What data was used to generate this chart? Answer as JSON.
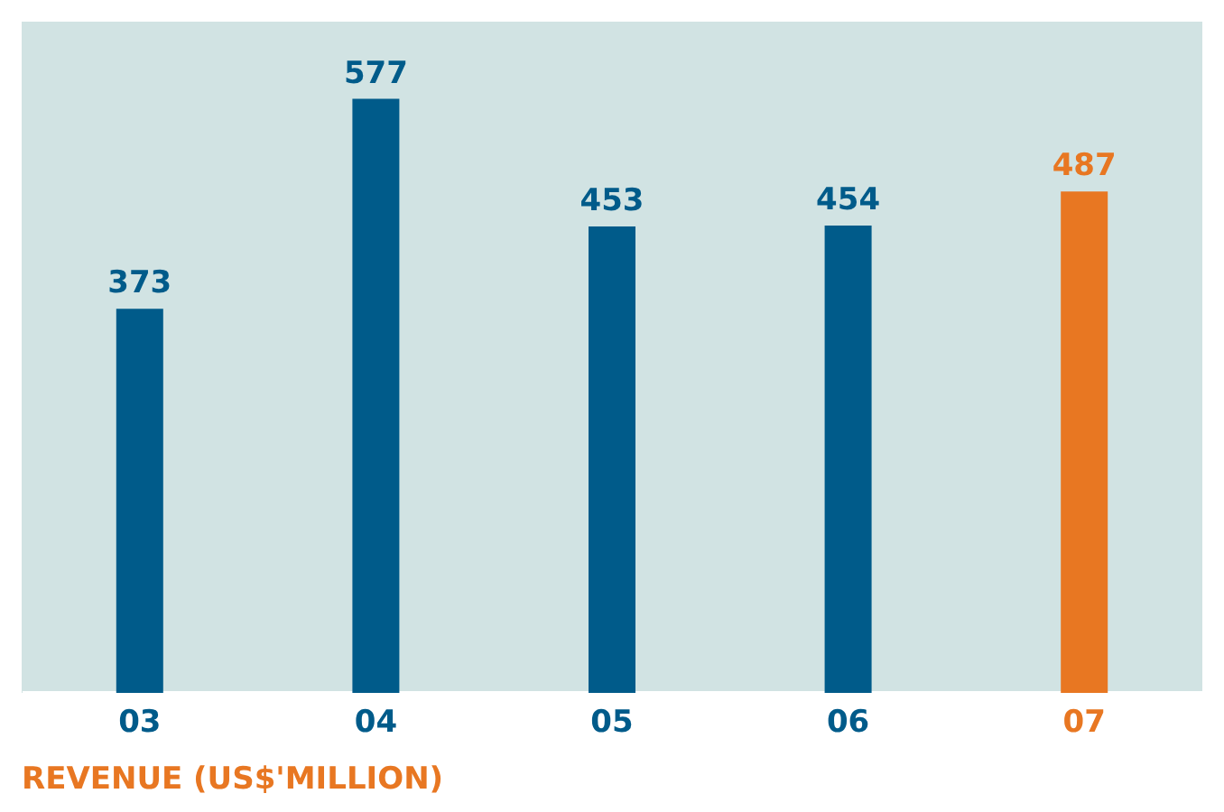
{
  "chart_data": {
    "type": "bar",
    "title": "REVENUE (US$'MILLION)",
    "categories": [
      "03",
      "04",
      "05",
      "06",
      "07"
    ],
    "values": [
      373,
      577,
      453,
      454,
      487
    ],
    "colors": [
      "#005b8a",
      "#005b8a",
      "#005b8a",
      "#005b8a",
      "#e87722"
    ],
    "data_labels": true,
    "grid": false
  }
}
